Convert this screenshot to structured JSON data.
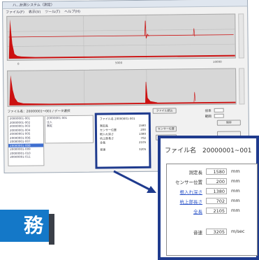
{
  "window": {
    "title": "ハ…計測システム（測定）",
    "menu": [
      "ファイル(F)",
      "表示(V)",
      "ツール(T)",
      "ヘルプ(H)"
    ]
  },
  "plots": {
    "accent_color": "#cc1111",
    "background_color": "#d7d7d7",
    "axis_ticks": [
      "0",
      "5000",
      "10000"
    ]
  },
  "controls": {
    "caption": "ファイル名：20000001～001 / データ選択",
    "file_list": [
      "20000001-001",
      "20000001-002",
      "20000001-003",
      "20000001-004",
      "20000001-005",
      "20000001-006",
      "20000001-007",
      "20000001-008",
      "20000001-009",
      "20000001-010",
      "20000001-011"
    ],
    "selected_index": 7,
    "detail_list": [
      "20000001-001",
      "注入",
      "測定"
    ],
    "mini_title": "ファイル名 20000001-001",
    "mini_rows": [
      {
        "label": "測定長",
        "value": "1580"
      },
      {
        "label": "センサー位置",
        "value": "200"
      },
      {
        "label": "根入れ深さ",
        "value": "1380"
      },
      {
        "label": "杭上部長さ",
        "value": "702"
      },
      {
        "label": "全長",
        "value": "2105"
      },
      {
        "label": "音速",
        "value": "3205"
      }
    ],
    "buttons": {
      "load": "ファイル読込",
      "position": "センサー位置",
      "calc": "計算",
      "save": "保存"
    },
    "right_labels": [
      "倍率",
      "範囲"
    ]
  },
  "zoom_panel": {
    "title": "ファイル名　20000001~001",
    "rows": [
      {
        "label": "測定長",
        "value": "1580",
        "unit": "mm",
        "link": false
      },
      {
        "label": "センサー位置",
        "value": "200",
        "unit": "mm",
        "link": false
      },
      {
        "label": "根入れ深さ",
        "value": "1380",
        "unit": "mm",
        "link": true
      },
      {
        "label": "杭上部長さ",
        "value": "702",
        "unit": "mm",
        "link": true
      },
      {
        "label": "全長",
        "value": "2105",
        "unit": "mm",
        "link": true
      }
    ],
    "speed": {
      "label": "音速",
      "value": "3205",
      "unit": "m/sec"
    }
  },
  "badge": {
    "text": "務"
  }
}
